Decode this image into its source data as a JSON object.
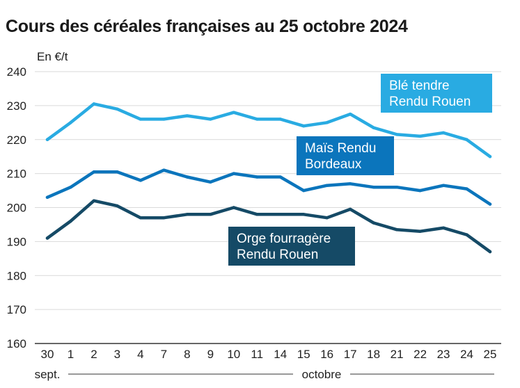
{
  "title": "Cours des céréales françaises au 25 octobre 2024",
  "chart_data": {
    "type": "line",
    "title": "Cours des céréales françaises au 25 octobre 2024",
    "ylabel": "En €/t",
    "ylim": [
      160,
      240
    ],
    "yticks": [
      160,
      170,
      180,
      190,
      200,
      210,
      220,
      230,
      240
    ],
    "grid": "horizontal",
    "categories": [
      "30",
      "1",
      "2",
      "3",
      "4",
      "7",
      "8",
      "9",
      "10",
      "11",
      "14",
      "15",
      "16",
      "17",
      "18",
      "21",
      "22",
      "23",
      "24",
      "25"
    ],
    "months": [
      {
        "label": "sept.",
        "from": 0,
        "to": 0
      },
      {
        "label": "octobre",
        "from": 1,
        "to": 19
      }
    ],
    "series": [
      {
        "name": "Blé tendre Rendu Rouen",
        "label_lines": [
          "Blé tendre",
          "Rendu Rouen"
        ],
        "color": "#29abe2",
        "values": [
          220,
          225,
          230.5,
          229,
          226,
          226,
          227,
          226,
          228,
          226,
          226,
          224,
          225,
          227.5,
          223.5,
          221.5,
          221,
          222,
          220,
          215
        ]
      },
      {
        "name": "Maïs Rendu Bordeaux",
        "label_lines": [
          "Maïs Rendu",
          "Bordeaux"
        ],
        "color": "#0b75bc",
        "values": [
          203,
          206,
          210.5,
          210.5,
          208,
          211,
          209,
          207.5,
          210,
          209,
          209,
          205,
          206.5,
          207,
          206,
          206,
          205,
          206.5,
          205.5,
          201
        ]
      },
      {
        "name": "Orge fourragère Rendu Rouen",
        "label_lines": [
          "Orge fourragère",
          "Rendu Rouen"
        ],
        "color": "#154a66",
        "values": [
          191,
          196,
          202,
          200.5,
          197,
          197,
          198,
          198,
          200,
          198,
          198,
          198,
          197,
          199.5,
          195.5,
          193.5,
          193,
          194,
          192,
          187
        ]
      }
    ]
  }
}
